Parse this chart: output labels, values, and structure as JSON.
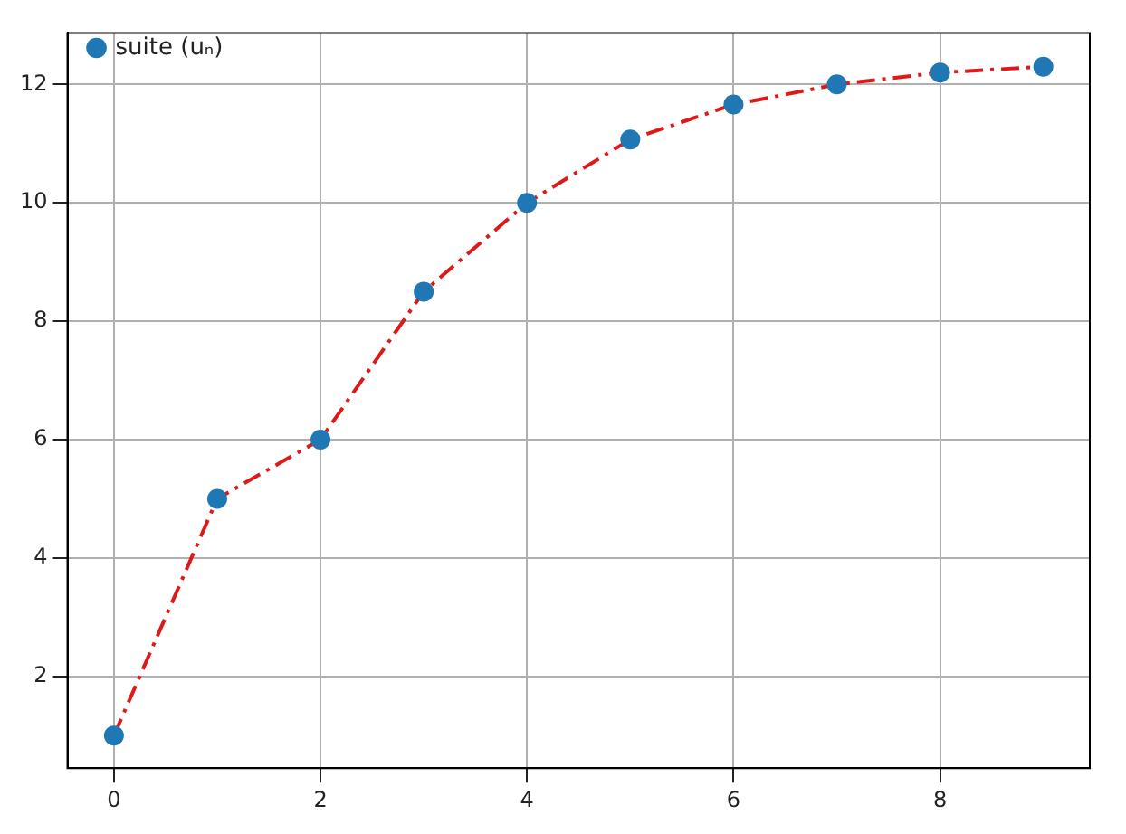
{
  "chart_data": {
    "type": "scatter",
    "x": [
      0,
      1,
      2,
      3,
      4,
      5,
      6,
      7,
      8,
      9
    ],
    "series": [
      {
        "type": "line",
        "color": "#dd1a1a",
        "line_style": "dashed",
        "marker": "none",
        "values": [
          1,
          5,
          6,
          8.5,
          10,
          11.07,
          11.66,
          12,
          12.2,
          12.3
        ]
      },
      {
        "name": "suite (uₙ)",
        "color": "#1f77b4",
        "marker": "circle",
        "values": [
          1,
          5,
          6,
          8.5,
          10,
          11.07,
          11.66,
          12,
          12.2,
          12.3
        ]
      }
    ],
    "xlim": [
      -0.45,
      9.45
    ],
    "xticks": [
      0,
      2,
      4,
      6,
      8
    ],
    "ylim": [
      0.45,
      12.87
    ],
    "yticks": [
      2,
      4,
      6,
      8,
      10,
      12
    ],
    "grid": true,
    "legend": "top left"
  }
}
